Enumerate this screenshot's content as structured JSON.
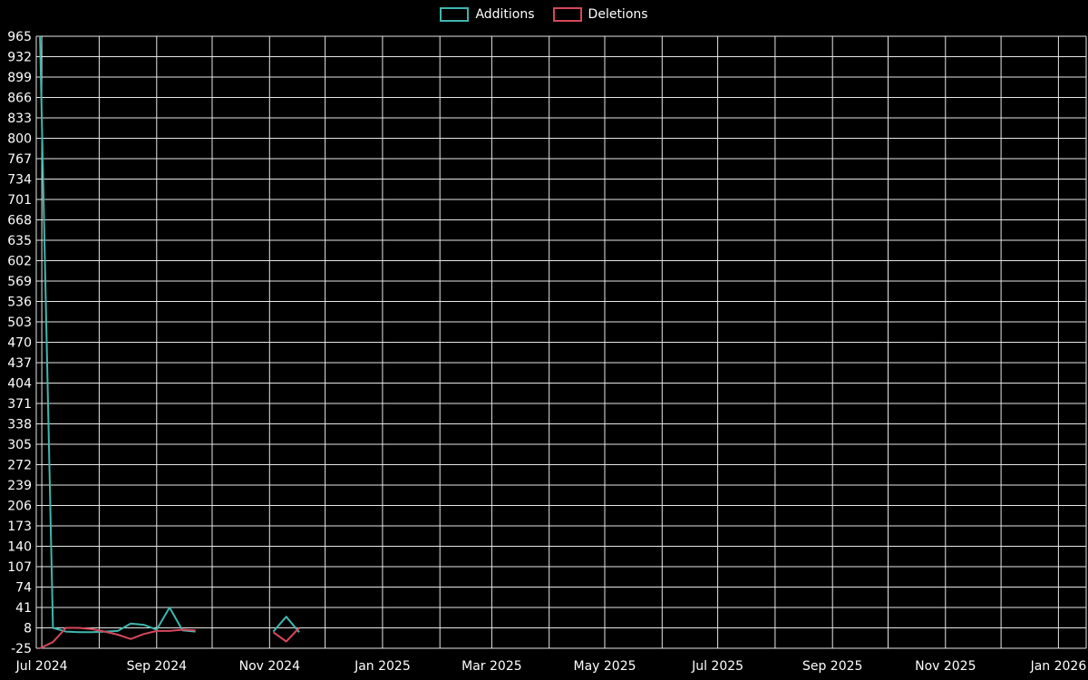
{
  "chart_data": {
    "type": "line",
    "title": "",
    "background": "#000000",
    "text_color": "#ffffff",
    "grid_color": "#e6e6e6",
    "grid": true,
    "legend_position": "top-center",
    "x_axis": {
      "domain_start": "2024-06-28",
      "domain_end": "2026-01-16",
      "tick_labels": [
        "Jul 2024",
        "Sep 2024",
        "Nov 2024",
        "Jan 2025",
        "Mar 2025",
        "May 2025",
        "Jul 2025",
        "Sep 2025",
        "Nov 2025",
        "Jan 2026"
      ]
    },
    "y_axis": {
      "min": -25,
      "max": 965,
      "tick_step": 33,
      "ticks": [
        -25,
        8,
        41,
        74,
        107,
        140,
        173,
        206,
        239,
        272,
        305,
        338,
        371,
        404,
        437,
        470,
        503,
        536,
        569,
        602,
        635,
        668,
        701,
        734,
        767,
        800,
        833,
        866,
        899,
        932,
        965
      ]
    },
    "series": [
      {
        "name": "Additions",
        "color": "#3eb7ae",
        "segments": [
          [
            [
              "2024-06-30",
              965
            ],
            [
              "2024-07-07",
              8
            ],
            [
              "2024-07-14",
              2
            ],
            [
              "2024-07-21",
              1
            ],
            [
              "2024-07-28",
              1
            ],
            [
              "2024-08-04",
              2
            ],
            [
              "2024-08-11",
              3
            ],
            [
              "2024-08-18",
              15
            ],
            [
              "2024-08-25",
              13
            ],
            [
              "2024-09-01",
              5
            ],
            [
              "2024-09-08",
              41
            ],
            [
              "2024-09-15",
              4
            ],
            [
              "2024-09-22",
              2
            ]
          ],
          [
            [
              "2024-11-03",
              2
            ],
            [
              "2024-11-10",
              26
            ],
            [
              "2024-11-17",
              1
            ]
          ]
        ]
      },
      {
        "name": "Deletions",
        "color": "#d6475a",
        "segments": [
          [
            [
              "2024-06-30",
              -25
            ],
            [
              "2024-07-07",
              -15
            ],
            [
              "2024-07-14",
              8
            ],
            [
              "2024-07-21",
              8
            ],
            [
              "2024-07-28",
              6
            ],
            [
              "2024-08-04",
              2
            ],
            [
              "2024-08-11",
              -3
            ],
            [
              "2024-08-18",
              -10
            ],
            [
              "2024-08-25",
              -2
            ],
            [
              "2024-09-01",
              3
            ],
            [
              "2024-09-08",
              3
            ],
            [
              "2024-09-15",
              5
            ],
            [
              "2024-09-22",
              4
            ]
          ],
          [
            [
              "2024-11-03",
              1
            ],
            [
              "2024-11-10",
              -14
            ],
            [
              "2024-11-17",
              8
            ]
          ]
        ]
      }
    ]
  }
}
